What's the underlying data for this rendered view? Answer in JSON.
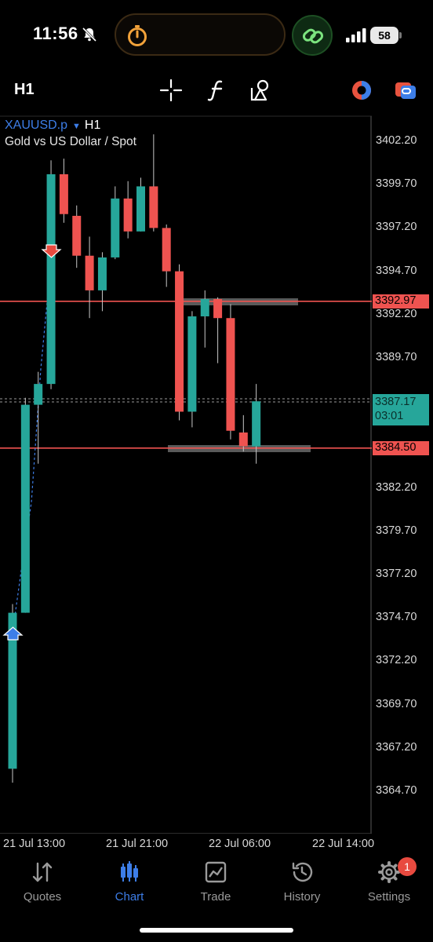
{
  "status_bar": {
    "time": "11:56",
    "battery": "58",
    "icons": [
      "bell-slash-icon",
      "timer-icon",
      "link-icon",
      "signal-icon",
      "battery-icon"
    ]
  },
  "toolbar": {
    "timeframe": "H1",
    "icons": [
      "crosshair-icon",
      "indicator-f-icon",
      "objects-icon",
      "chart-color-icon",
      "trade-icon"
    ]
  },
  "chart": {
    "symbol": "XAUUSD.p",
    "timeframe": "H1",
    "description": "Gold vs US Dollar / Spot",
    "countdown": "03:01",
    "bid_label": "3387.17",
    "colors": {
      "bull": "#26a69a",
      "bear": "#ef5350",
      "line": "#ef5350",
      "bg": "#000000"
    }
  },
  "chart_data": {
    "type": "candlestick",
    "title": "XAUUSD.p H1",
    "y_ticks": [
      "3402.20",
      "3399.70",
      "3397.20",
      "3394.70",
      "3392.20",
      "3389.70",
      "3382.20",
      "3379.70",
      "3377.20",
      "3374.70",
      "3372.20",
      "3369.70",
      "3367.20",
      "3364.70"
    ],
    "ylim": [
      3362.5,
      3403.5
    ],
    "x_ticks": [
      "21 Jul 13:00",
      "21 Jul 21:00",
      "22 Jul 06:00",
      "22 Jul 14:00"
    ],
    "horizontal_lines": [
      {
        "price": "3392.97",
        "color": "#ef5350"
      },
      {
        "price": "3384.50",
        "color": "#ef5350"
      }
    ],
    "current_price": "3387.17",
    "candles": [
      {
        "o": 3366.0,
        "h": 3375.5,
        "l": 3365.2,
        "c": 3375.0
      },
      {
        "o": 3375.0,
        "h": 3387.4,
        "l": 3375.0,
        "c": 3387.0
      },
      {
        "o": 3387.0,
        "h": 3388.9,
        "l": 3383.6,
        "c": 3388.2
      },
      {
        "o": 3388.2,
        "h": 3401.1,
        "l": 3387.9,
        "c": 3400.3
      },
      {
        "o": 3400.3,
        "h": 3401.2,
        "l": 3397.5,
        "c": 3398.0
      },
      {
        "o": 3397.9,
        "h": 3398.5,
        "l": 3394.9,
        "c": 3395.6
      },
      {
        "o": 3395.6,
        "h": 3396.7,
        "l": 3392.0,
        "c": 3393.6
      },
      {
        "o": 3393.6,
        "h": 3395.8,
        "l": 3392.4,
        "c": 3395.5
      },
      {
        "o": 3395.5,
        "h": 3399.6,
        "l": 3395.4,
        "c": 3398.9
      },
      {
        "o": 3398.9,
        "h": 3399.9,
        "l": 3396.6,
        "c": 3397.0
      },
      {
        "o": 3397.0,
        "h": 3400.1,
        "l": 3397.0,
        "c": 3399.6
      },
      {
        "o": 3399.6,
        "h": 3402.6,
        "l": 3397.0,
        "c": 3397.2
      },
      {
        "o": 3397.2,
        "h": 3397.4,
        "l": 3393.8,
        "c": 3394.7
      },
      {
        "o": 3394.7,
        "h": 3395.1,
        "l": 3386.1,
        "c": 3386.6
      },
      {
        "o": 3386.6,
        "h": 3392.4,
        "l": 3385.7,
        "c": 3392.1
      },
      {
        "o": 3392.1,
        "h": 3393.6,
        "l": 3390.3,
        "c": 3393.1
      },
      {
        "o": 3393.1,
        "h": 3393.2,
        "l": 3389.4,
        "c": 3392.0
      },
      {
        "o": 3392.0,
        "h": 3392.8,
        "l": 3385.0,
        "c": 3385.5
      },
      {
        "o": 3385.4,
        "h": 3386.4,
        "l": 3384.3,
        "c": 3384.6
      },
      {
        "o": 3384.6,
        "h": 3388.2,
        "l": 3383.6,
        "c": 3387.2
      }
    ]
  },
  "bottom_nav": {
    "items": [
      {
        "label": "Quotes",
        "icon": "quotes-icon"
      },
      {
        "label": "Chart",
        "icon": "chart-candles-icon",
        "active": true
      },
      {
        "label": "Trade",
        "icon": "trade-chart-icon"
      },
      {
        "label": "History",
        "icon": "history-icon"
      },
      {
        "label": "Settings",
        "icon": "gear-icon",
        "badge": "1"
      }
    ]
  }
}
